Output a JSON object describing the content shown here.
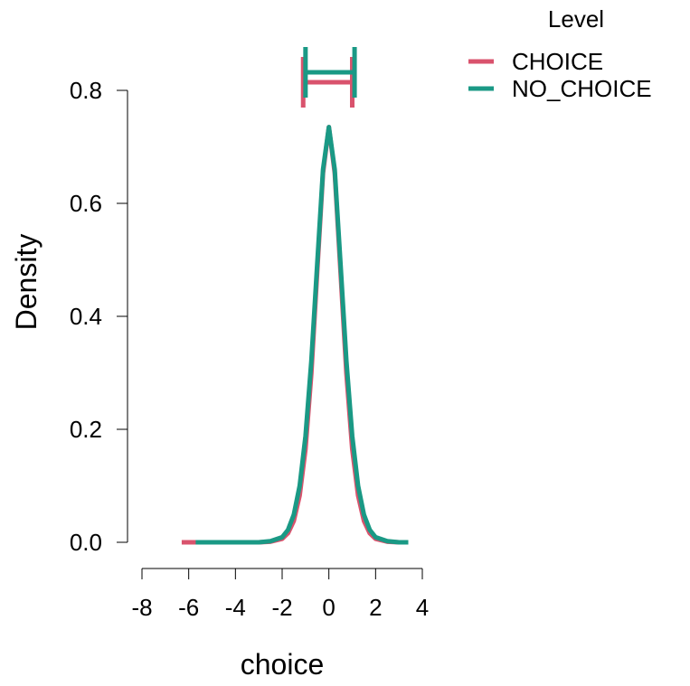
{
  "chart_data": {
    "type": "line",
    "xlabel": "choice",
    "ylabel": "Density",
    "xlim": [
      -8,
      4
    ],
    "ylim": [
      0,
      0.8
    ],
    "x_ticks": [
      -8,
      -6,
      -4,
      -2,
      0,
      2,
      4
    ],
    "y_ticks": [
      0.0,
      0.2,
      0.4,
      0.6,
      0.8
    ],
    "x_tick_labels": [
      "-8",
      "-6",
      "-4",
      "-2",
      "0",
      "2",
      "4"
    ],
    "y_tick_labels": [
      "0.0",
      "0.2",
      "0.4",
      "0.6",
      "0.8"
    ],
    "grid": false,
    "legend": {
      "title": "Level",
      "placement": "top-right outside plot"
    },
    "series": [
      {
        "name": "CHOICE",
        "color": "#D9536D",
        "x": [
          -6.3,
          -5.0,
          -4.0,
          -3.0,
          -2.5,
          -2.0,
          -1.75,
          -1.5,
          -1.25,
          -1.0,
          -0.75,
          -0.5,
          -0.25,
          0.0,
          0.25,
          0.5,
          0.75,
          1.0,
          1.25,
          1.5,
          1.75,
          2.0,
          2.5,
          3.0,
          3.3
        ],
        "y": [
          0.0,
          0.0,
          0.0,
          0.0,
          0.001,
          0.006,
          0.016,
          0.038,
          0.083,
          0.165,
          0.299,
          0.478,
          0.654,
          0.735,
          0.654,
          0.478,
          0.299,
          0.165,
          0.083,
          0.038,
          0.016,
          0.006,
          0.001,
          0.0,
          0.0
        ],
        "interval": [
          -1.1,
          1.0
        ]
      },
      {
        "name": "NO_CHOICE",
        "color": "#1A9985",
        "x": [
          -5.7,
          -5.0,
          -4.0,
          -3.0,
          -2.5,
          -2.0,
          -1.75,
          -1.5,
          -1.25,
          -1.0,
          -0.75,
          -0.5,
          -0.25,
          0.0,
          0.25,
          0.5,
          0.75,
          1.0,
          1.25,
          1.5,
          1.75,
          2.0,
          2.5,
          3.0,
          3.4
        ],
        "y": [
          0.0,
          0.0,
          0.0,
          0.0,
          0.002,
          0.009,
          0.022,
          0.049,
          0.1,
          0.188,
          0.321,
          0.492,
          0.66,
          0.735,
          0.66,
          0.492,
          0.321,
          0.188,
          0.1,
          0.049,
          0.022,
          0.009,
          0.002,
          0.0,
          0.0
        ],
        "interval": [
          -1.0,
          1.1
        ]
      }
    ]
  }
}
